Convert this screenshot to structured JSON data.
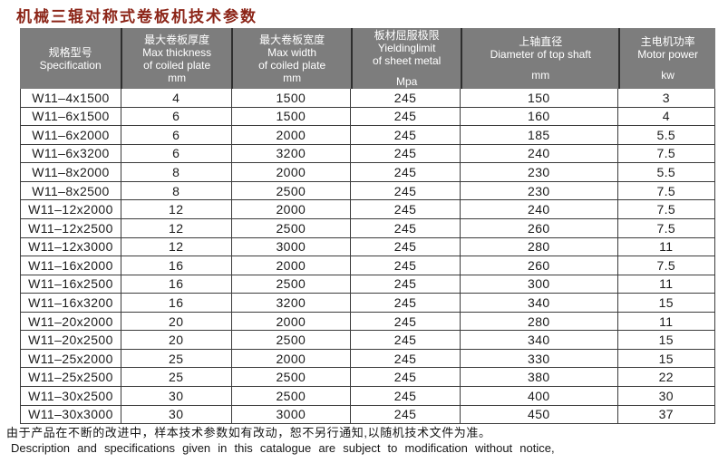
{
  "title": "机械三辊对称式卷板机技术参数",
  "table": {
    "columns": [
      {
        "cn": "规格型号",
        "en": [
          "Specification"
        ],
        "unit": ""
      },
      {
        "cn": "最大卷板厚度",
        "en": [
          "Max thickness",
          "of coiled plate"
        ],
        "unit": "mm"
      },
      {
        "cn": "最大卷板宽度",
        "en": [
          "Max width",
          "of coiled plate"
        ],
        "unit": "mm"
      },
      {
        "cn": "板材屈服极限",
        "en": [
          "Yieldinglimit",
          "of sheet metal"
        ],
        "unit": "Mpa"
      },
      {
        "cn": "上轴直径",
        "en": [
          "Diameter of top shaft"
        ],
        "unit": "mm"
      },
      {
        "cn": "主电机功率",
        "en": [
          "Motor power"
        ],
        "unit": "kw"
      }
    ],
    "rows": [
      [
        "W11–4x1500",
        "4",
        "1500",
        "245",
        "150",
        "3"
      ],
      [
        "W11–6x1500",
        "6",
        "1500",
        "245",
        "160",
        "4"
      ],
      [
        "W11–6x2000",
        "6",
        "2000",
        "245",
        "185",
        "5.5"
      ],
      [
        "W11–6x3200",
        "6",
        "3200",
        "245",
        "240",
        "7.5"
      ],
      [
        "W11–8x2000",
        "8",
        "2000",
        "245",
        "230",
        "5.5"
      ],
      [
        "W11–8x2500",
        "8",
        "2500",
        "245",
        "230",
        "7.5"
      ],
      [
        "W11–12x2000",
        "12",
        "2000",
        "245",
        "240",
        "7.5"
      ],
      [
        "W11–12x2500",
        "12",
        "2500",
        "245",
        "260",
        "7.5"
      ],
      [
        "W11–12x3000",
        "12",
        "3000",
        "245",
        "280",
        "11"
      ],
      [
        "W11–16x2000",
        "16",
        "2000",
        "245",
        "260",
        "7.5"
      ],
      [
        "W11–16x2500",
        "16",
        "2500",
        "245",
        "300",
        "11"
      ],
      [
        "W11–16x3200",
        "16",
        "3200",
        "245",
        "340",
        "15"
      ],
      [
        "W11–20x2000",
        "20",
        "2000",
        "245",
        "280",
        "11"
      ],
      [
        "W11–20x2500",
        "20",
        "2500",
        "245",
        "340",
        "15"
      ],
      [
        "W11–25x2000",
        "25",
        "2000",
        "245",
        "330",
        "15"
      ],
      [
        "W11–25x2500",
        "25",
        "2500",
        "245",
        "380",
        "22"
      ],
      [
        "W11–30x2500",
        "30",
        "2500",
        "245",
        "400",
        "30"
      ],
      [
        "W11–30x3000",
        "30",
        "3000",
        "245",
        "450",
        "37"
      ]
    ]
  },
  "footer": {
    "cn": "由于产品在不断的改进中，样本技术参数如有改动，恕不另行通知,以随机技术文件为准。",
    "en": "Description and specifications given in this catalogue are subject to modification without notice,"
  },
  "colors": {
    "title": "#8c2518",
    "header_bg": "#7d7d7d",
    "header_text": "#ffffff",
    "border": "#3b3b3b",
    "body_text": "#1c1c1c"
  }
}
